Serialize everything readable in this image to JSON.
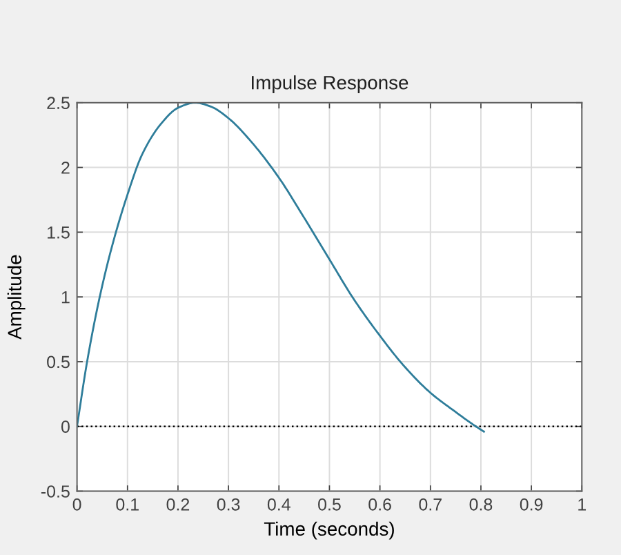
{
  "chart_data": {
    "type": "line",
    "title": "Impulse Response",
    "xlabel": "Time (seconds)",
    "ylabel": "Amplitude",
    "x": [
      0,
      0.02,
      0.045,
      0.07,
      0.1,
      0.129,
      0.165,
      0.2,
      0.234,
      0.265,
      0.3,
      0.347,
      0.4,
      0.447,
      0.5,
      0.547,
      0.6,
      0.647,
      0.7,
      0.747,
      0.79,
      0.806
    ],
    "series": [
      {
        "color": "#2e7d9a",
        "values": [
          0,
          0.5,
          1.0,
          1.4,
          1.79,
          2.1,
          2.33,
          2.46,
          2.5,
          2.47,
          2.38,
          2.19,
          1.92,
          1.63,
          1.29,
          0.99,
          0.7,
          0.47,
          0.26,
          0.12,
          0,
          -0.04
        ]
      }
    ],
    "xlim": [
      0,
      1
    ],
    "xticks": [
      0,
      0.1,
      0.2,
      0.3,
      0.4,
      0.5,
      0.6,
      0.7,
      0.8,
      0.9,
      1
    ],
    "ylim": [
      -0.5,
      2.5
    ],
    "yticks": [
      -0.5,
      0,
      0.5,
      1,
      1.5,
      2,
      2.5
    ],
    "grid": true,
    "ref_lines": [
      {
        "axis": "y",
        "value": 0,
        "line_style": "dotted",
        "color": "#000000"
      }
    ]
  }
}
